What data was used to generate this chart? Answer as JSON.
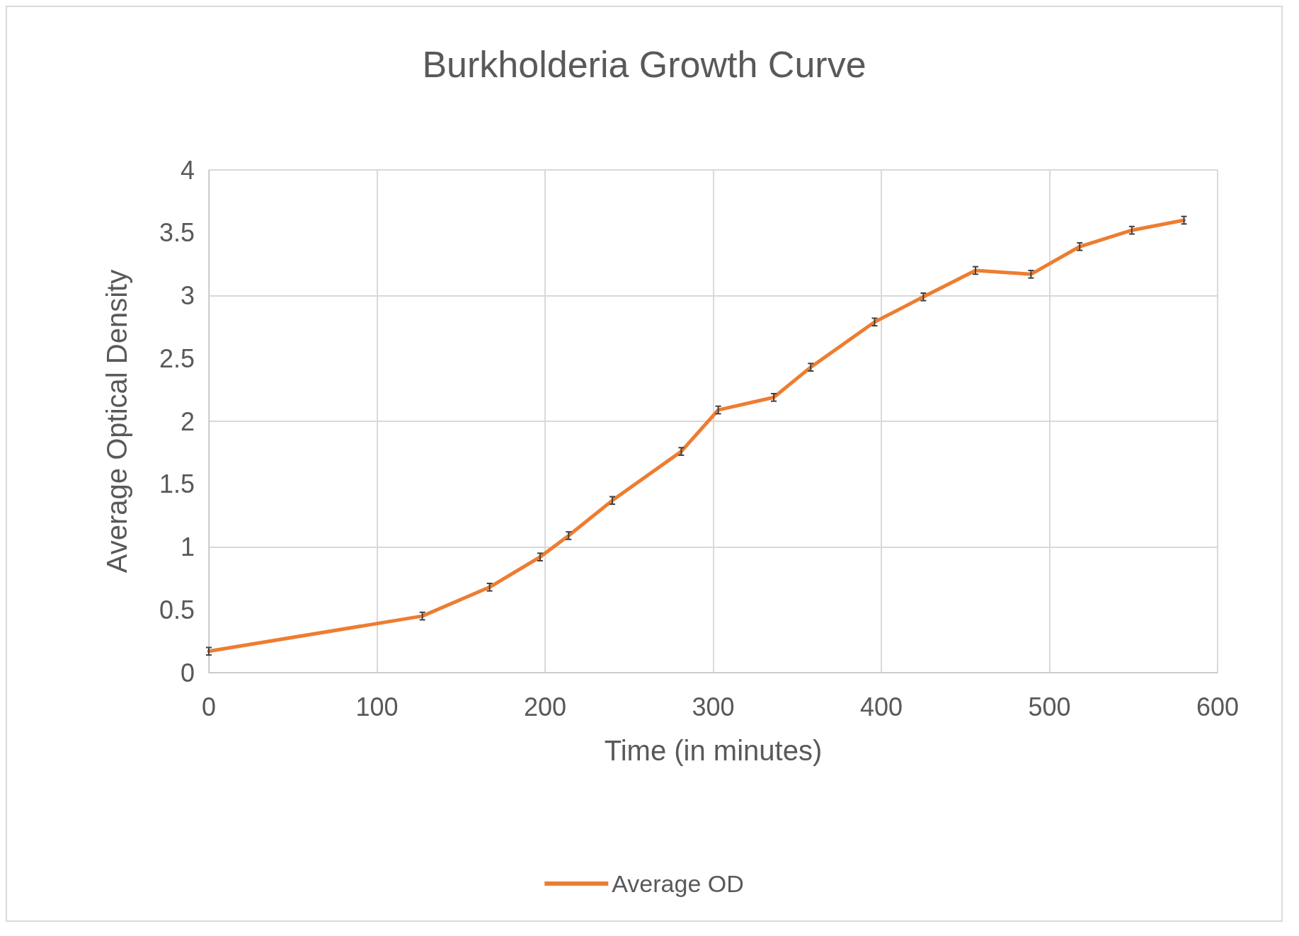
{
  "chart_data": {
    "type": "line",
    "title": "Burkholderia Growth Curve",
    "xlabel": "Time (in minutes)",
    "ylabel": "Average Optical Density",
    "x": [
      0,
      127,
      167,
      197,
      214,
      240,
      281,
      303,
      336,
      358,
      396,
      425,
      456,
      489,
      518,
      549,
      580
    ],
    "series": [
      {
        "name": "Average OD",
        "color": "#ed7d31",
        "values": [
          0.17,
          0.45,
          0.68,
          0.92,
          1.09,
          1.37,
          1.76,
          2.09,
          2.19,
          2.43,
          2.79,
          2.99,
          3.2,
          3.17,
          3.39,
          3.52,
          3.6
        ],
        "errors": [
          0.03,
          0.03,
          0.03,
          0.03,
          0.03,
          0.03,
          0.03,
          0.03,
          0.03,
          0.03,
          0.03,
          0.03,
          0.03,
          0.03,
          0.03,
          0.03,
          0.03
        ]
      }
    ],
    "xlim": [
      0,
      600
    ],
    "xticks": [
      0,
      100,
      200,
      300,
      400,
      500,
      600
    ],
    "ylim": [
      0,
      4
    ],
    "yticks": [
      0,
      0.5,
      1,
      1.5,
      2,
      2.5,
      3,
      3.5,
      4
    ],
    "grid": true,
    "legend": "bottom",
    "marker": "none",
    "line_style": "solid"
  }
}
